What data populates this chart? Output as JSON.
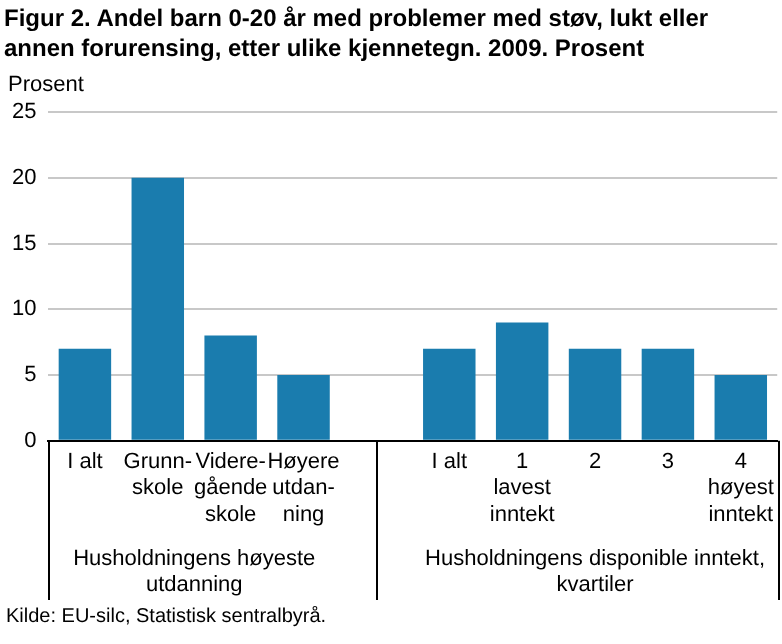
{
  "chart_data": {
    "type": "bar",
    "title": "Figur 2. Andel barn 0-20 år med problemer med støv, lukt eller annen forurensing, etter ulike kjennetegn. 2009. Prosent",
    "ylabel": "Prosent",
    "categories": [
      "I alt",
      "Grunn-\nskole",
      "Videre-\ngående\nskole",
      "Høyere\nutdan-\nning",
      null,
      "I alt",
      "1\nlavest\ninntekt",
      "2",
      "3",
      "4\nhøyest\ninntekt"
    ],
    "values": [
      7,
      20,
      8,
      5,
      null,
      7,
      9,
      7,
      7,
      5
    ],
    "color": "#1a7cae",
    "ylim": [
      0,
      25
    ],
    "yticks": [
      0,
      5,
      10,
      15,
      20,
      25
    ],
    "grid": "y",
    "annotations": [
      "Husholdningens høyeste utdanning",
      "Husholdningens disponible inntekt, kvartiler",
      "Kilde: EU-silc, Statistisk sentralbyrå."
    ]
  }
}
